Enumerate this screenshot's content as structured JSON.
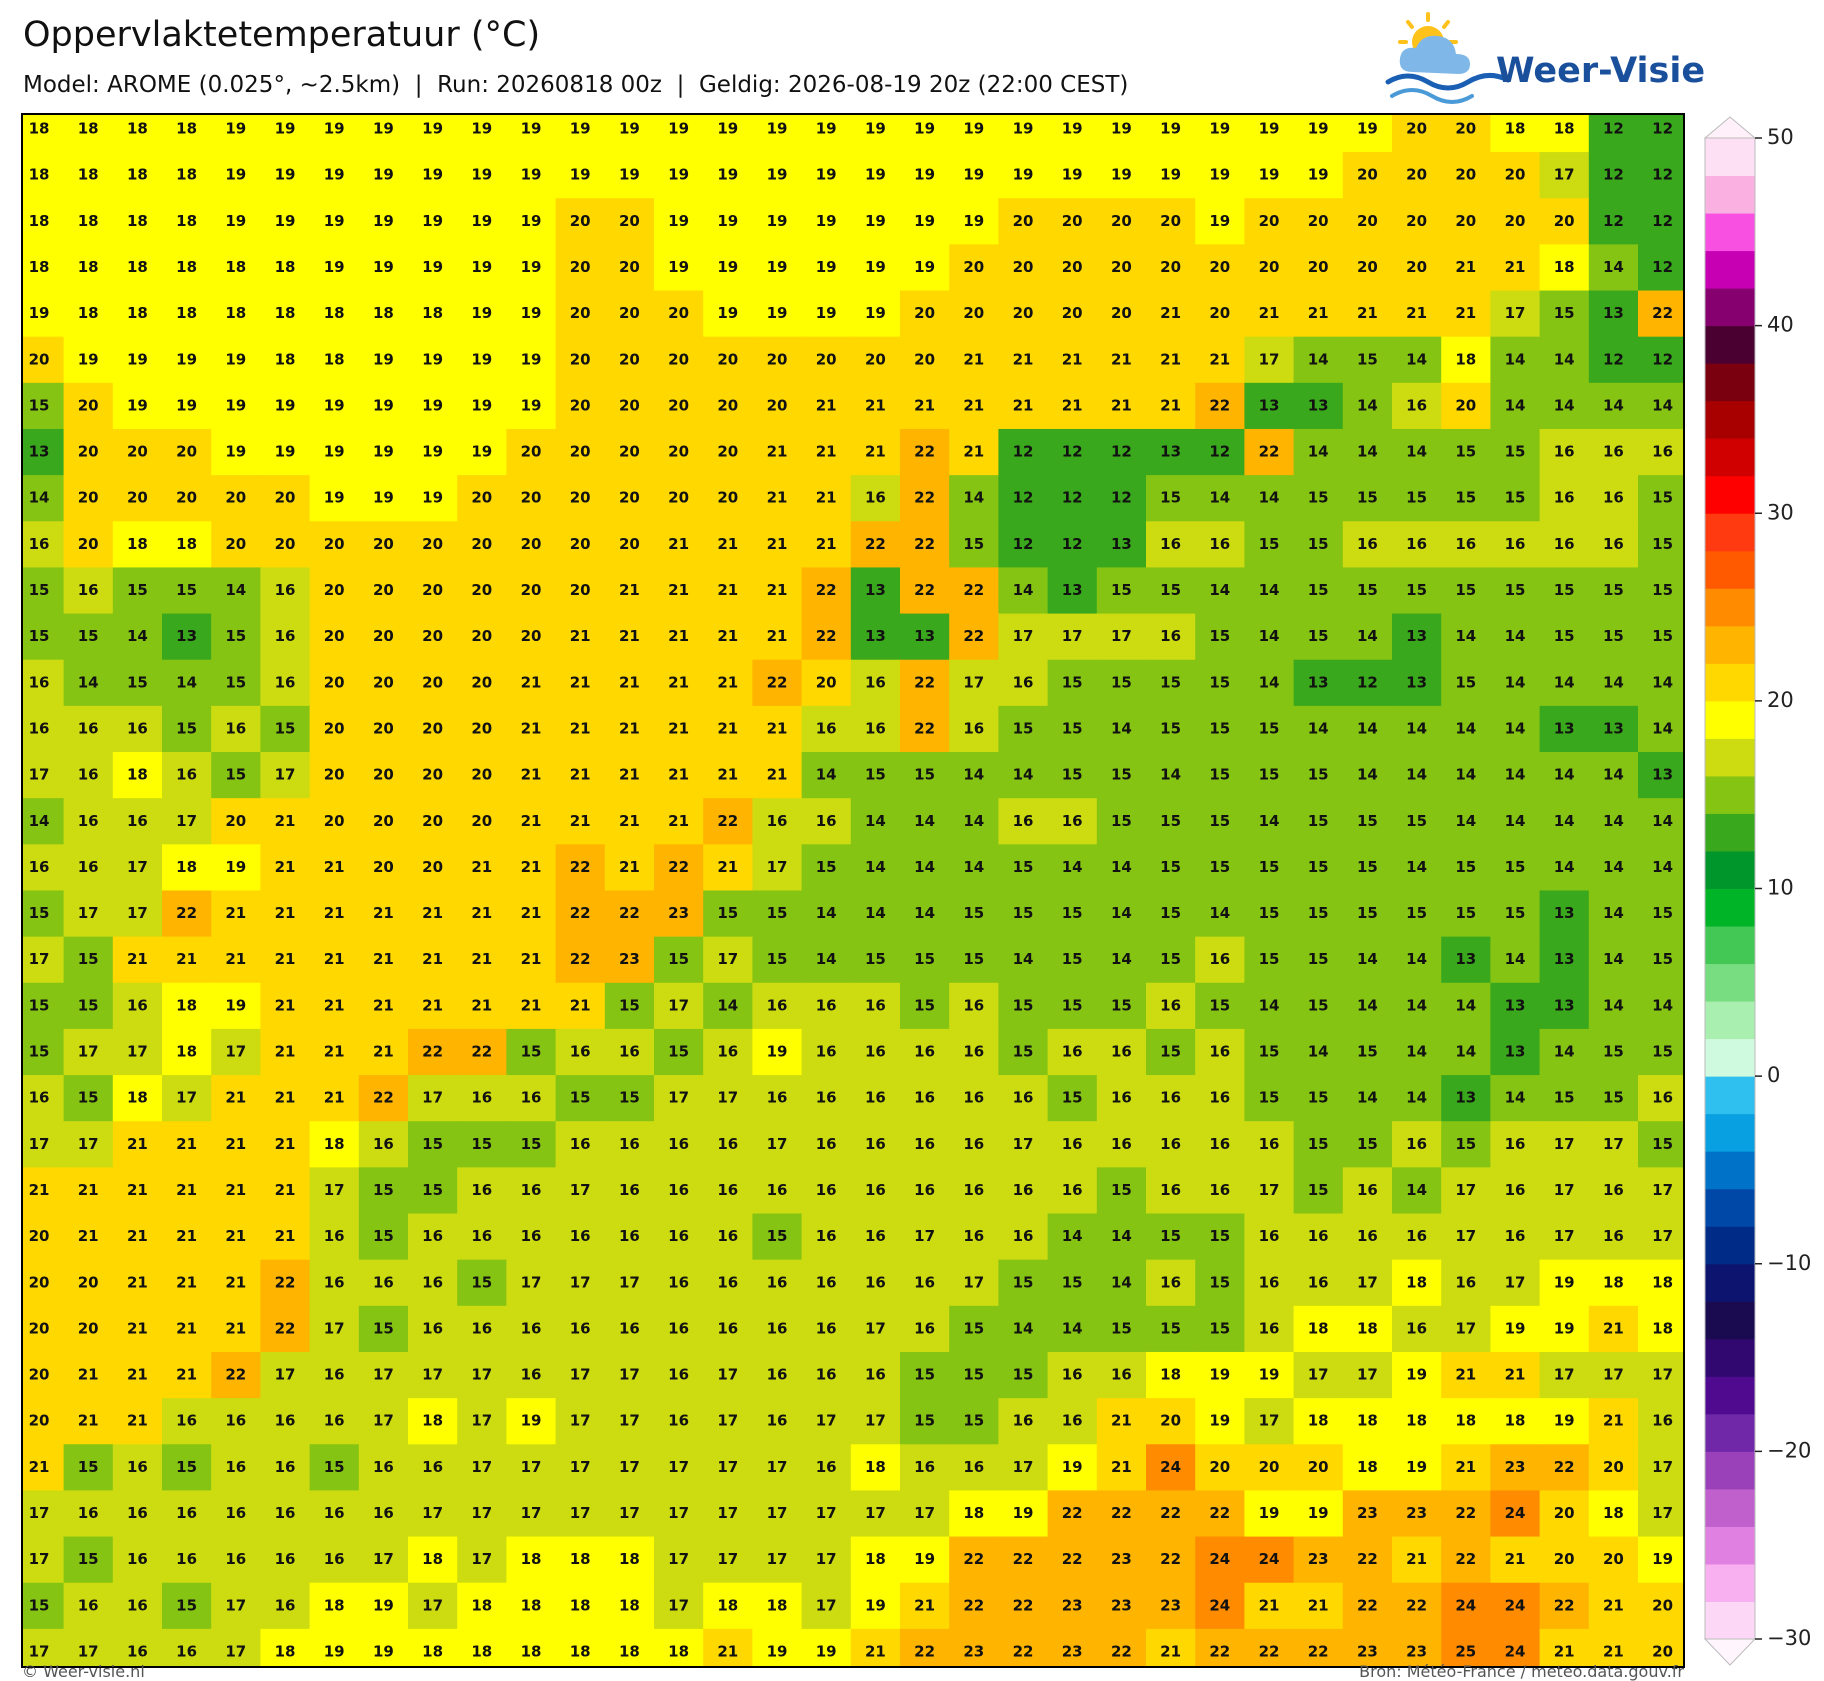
{
  "header": {
    "title": "Oppervlaktetemperatuur (°C)",
    "subtitle": "Model: AROME (0.025°, ~2.5km)  |  Run: 20260818 00z  |  Geldig: 2026-08-19 20z (22:00 CEST)"
  },
  "logo": "Weer-Visie",
  "map": {
    "rows": [
      [
        18,
        18,
        18,
        18,
        19,
        19,
        19,
        19,
        19,
        19,
        19,
        19,
        19,
        19,
        19,
        19,
        19,
        19,
        19,
        19,
        19,
        19,
        19,
        19,
        19,
        19,
        19,
        19,
        20,
        20,
        18,
        18,
        12,
        12
      ],
      [
        18,
        18,
        18,
        18,
        19,
        19,
        19,
        19,
        19,
        19,
        19,
        19,
        19,
        19,
        19,
        19,
        19,
        19,
        19,
        19,
        19,
        19,
        19,
        19,
        19,
        19,
        19,
        20,
        20,
        20,
        20,
        17,
        12,
        12
      ],
      [
        18,
        18,
        18,
        18,
        19,
        19,
        19,
        19,
        19,
        19,
        19,
        20,
        20,
        19,
        19,
        19,
        19,
        19,
        19,
        19,
        20,
        20,
        20,
        20,
        19,
        20,
        20,
        20,
        20,
        20,
        20,
        20,
        12,
        12
      ],
      [
        18,
        18,
        18,
        18,
        18,
        18,
        19,
        19,
        19,
        19,
        19,
        20,
        20,
        19,
        19,
        19,
        19,
        19,
        19,
        20,
        20,
        20,
        20,
        20,
        20,
        20,
        20,
        20,
        20,
        21,
        21,
        18,
        14,
        12
      ],
      [
        19,
        18,
        18,
        18,
        18,
        18,
        18,
        18,
        18,
        19,
        19,
        20,
        20,
        20,
        19,
        19,
        19,
        19,
        20,
        20,
        20,
        20,
        20,
        21,
        20,
        21,
        21,
        21,
        21,
        21,
        17,
        15,
        13,
        22
      ],
      [
        20,
        19,
        19,
        19,
        19,
        18,
        18,
        19,
        19,
        19,
        19,
        20,
        20,
        20,
        20,
        20,
        20,
        20,
        20,
        21,
        21,
        21,
        21,
        21,
        21,
        17,
        14,
        15,
        14,
        18,
        14,
        14,
        12,
        12
      ],
      [
        15,
        20,
        19,
        19,
        19,
        19,
        19,
        19,
        19,
        19,
        19,
        20,
        20,
        20,
        20,
        20,
        21,
        21,
        21,
        21,
        21,
        21,
        21,
        21,
        22,
        13,
        13,
        14,
        16,
        20,
        14,
        14,
        14,
        14
      ],
      [
        13,
        20,
        20,
        20,
        19,
        19,
        19,
        19,
        19,
        19,
        20,
        20,
        20,
        20,
        20,
        21,
        21,
        21,
        22,
        21,
        12,
        12,
        12,
        13,
        12,
        22,
        14,
        14,
        14,
        15,
        15,
        16,
        16,
        16
      ],
      [
        14,
        20,
        20,
        20,
        20,
        20,
        19,
        19,
        19,
        20,
        20,
        20,
        20,
        20,
        20,
        21,
        21,
        16,
        22,
        14,
        12,
        12,
        12,
        15,
        14,
        14,
        15,
        15,
        15,
        15,
        15,
        16,
        16,
        15
      ],
      [
        16,
        20,
        18,
        18,
        20,
        20,
        20,
        20,
        20,
        20,
        20,
        20,
        20,
        21,
        21,
        21,
        21,
        22,
        22,
        15,
        12,
        12,
        13,
        16,
        16,
        15,
        15,
        16,
        16,
        16,
        16,
        16,
        16,
        15
      ],
      [
        15,
        16,
        15,
        15,
        14,
        16,
        20,
        20,
        20,
        20,
        20,
        20,
        21,
        21,
        21,
        21,
        22,
        13,
        22,
        22,
        14,
        13,
        15,
        15,
        14,
        14,
        15,
        15,
        15,
        15,
        15,
        15,
        15,
        15
      ],
      [
        15,
        15,
        14,
        13,
        15,
        16,
        20,
        20,
        20,
        20,
        20,
        21,
        21,
        21,
        21,
        21,
        22,
        13,
        13,
        22,
        17,
        17,
        17,
        16,
        15,
        14,
        15,
        14,
        13,
        14,
        14,
        15,
        15,
        15
      ],
      [
        16,
        14,
        15,
        14,
        15,
        16,
        20,
        20,
        20,
        20,
        21,
        21,
        21,
        21,
        21,
        22,
        20,
        16,
        22,
        17,
        16,
        15,
        15,
        15,
        15,
        14,
        13,
        12,
        13,
        15,
        14,
        14,
        14,
        14
      ],
      [
        16,
        16,
        16,
        15,
        16,
        15,
        20,
        20,
        20,
        20,
        21,
        21,
        21,
        21,
        21,
        21,
        16,
        16,
        22,
        16,
        15,
        15,
        14,
        15,
        15,
        15,
        14,
        14,
        14,
        14,
        14,
        13,
        13,
        14
      ],
      [
        17,
        16,
        18,
        16,
        15,
        17,
        20,
        20,
        20,
        20,
        21,
        21,
        21,
        21,
        21,
        21,
        14,
        15,
        15,
        14,
        14,
        15,
        15,
        14,
        15,
        15,
        15,
        14,
        14,
        14,
        14,
        14,
        14,
        13
      ],
      [
        14,
        16,
        16,
        17,
        20,
        21,
        20,
        20,
        20,
        20,
        21,
        21,
        21,
        21,
        22,
        16,
        16,
        14,
        14,
        14,
        16,
        16,
        15,
        15,
        15,
        14,
        15,
        15,
        15,
        14,
        14,
        14,
        14,
        14
      ],
      [
        16,
        16,
        17,
        18,
        19,
        21,
        21,
        20,
        20,
        21,
        21,
        22,
        21,
        22,
        21,
        17,
        15,
        14,
        14,
        14,
        15,
        14,
        14,
        15,
        15,
        15,
        15,
        15,
        14,
        15,
        15,
        14,
        14,
        14
      ],
      [
        15,
        17,
        17,
        22,
        21,
        21,
        21,
        21,
        21,
        21,
        21,
        22,
        22,
        23,
        15,
        15,
        14,
        14,
        14,
        15,
        15,
        15,
        14,
        15,
        14,
        15,
        15,
        15,
        15,
        15,
        15,
        13,
        14,
        15
      ],
      [
        17,
        15,
        21,
        21,
        21,
        21,
        21,
        21,
        21,
        21,
        21,
        22,
        23,
        15,
        17,
        15,
        14,
        15,
        15,
        15,
        14,
        15,
        14,
        15,
        16,
        15,
        15,
        14,
        14,
        13,
        14,
        13,
        14,
        15
      ],
      [
        15,
        15,
        16,
        18,
        19,
        21,
        21,
        21,
        21,
        21,
        21,
        21,
        15,
        17,
        14,
        16,
        16,
        16,
        15,
        16,
        15,
        15,
        15,
        16,
        15,
        14,
        15,
        14,
        14,
        14,
        13,
        13,
        14,
        14
      ],
      [
        15,
        17,
        17,
        18,
        17,
        21,
        21,
        21,
        22,
        22,
        15,
        16,
        16,
        15,
        16,
        19,
        16,
        16,
        16,
        16,
        15,
        16,
        16,
        15,
        16,
        15,
        14,
        15,
        14,
        14,
        13,
        14,
        15,
        15
      ],
      [
        16,
        15,
        18,
        17,
        21,
        21,
        21,
        22,
        17,
        16,
        16,
        15,
        15,
        17,
        17,
        16,
        16,
        16,
        16,
        16,
        16,
        15,
        16,
        16,
        16,
        15,
        15,
        14,
        14,
        13,
        14,
        15,
        15,
        16
      ],
      [
        17,
        17,
        21,
        21,
        21,
        21,
        18,
        16,
        15,
        15,
        15,
        16,
        16,
        16,
        16,
        17,
        16,
        16,
        16,
        16,
        17,
        16,
        16,
        16,
        16,
        16,
        15,
        15,
        16,
        15,
        16,
        17,
        17,
        15
      ],
      [
        21,
        21,
        21,
        21,
        21,
        21,
        17,
        15,
        15,
        16,
        16,
        17,
        16,
        16,
        16,
        16,
        16,
        16,
        16,
        16,
        16,
        16,
        15,
        16,
        16,
        17,
        15,
        16,
        14,
        17,
        16,
        17,
        16,
        17
      ],
      [
        20,
        21,
        21,
        21,
        21,
        21,
        16,
        15,
        16,
        16,
        16,
        16,
        16,
        16,
        16,
        15,
        16,
        16,
        17,
        16,
        16,
        14,
        14,
        15,
        15,
        16,
        16,
        16,
        16,
        17,
        16,
        17,
        16,
        17
      ],
      [
        20,
        20,
        21,
        21,
        21,
        22,
        16,
        16,
        16,
        15,
        17,
        17,
        17,
        16,
        16,
        16,
        16,
        16,
        16,
        17,
        15,
        15,
        14,
        16,
        15,
        16,
        16,
        17,
        18,
        16,
        17,
        19,
        18,
        18
      ],
      [
        20,
        20,
        21,
        21,
        21,
        22,
        17,
        15,
        16,
        16,
        16,
        16,
        16,
        16,
        16,
        16,
        16,
        17,
        16,
        15,
        14,
        14,
        15,
        15,
        15,
        16,
        18,
        18,
        16,
        17,
        19,
        19,
        21,
        18
      ],
      [
        20,
        21,
        21,
        21,
        22,
        17,
        16,
        17,
        17,
        17,
        16,
        17,
        17,
        16,
        17,
        16,
        16,
        16,
        15,
        15,
        15,
        16,
        16,
        18,
        19,
        19,
        17,
        17,
        19,
        21,
        21,
        17,
        17,
        17
      ],
      [
        20,
        21,
        21,
        16,
        16,
        16,
        16,
        17,
        18,
        17,
        19,
        17,
        17,
        16,
        17,
        16,
        17,
        17,
        15,
        15,
        16,
        16,
        21,
        20,
        19,
        17,
        18,
        18,
        18,
        18,
        18,
        19,
        21,
        16
      ],
      [
        21,
        15,
        16,
        15,
        16,
        16,
        15,
        16,
        16,
        17,
        17,
        17,
        17,
        17,
        17,
        17,
        16,
        18,
        16,
        16,
        17,
        19,
        21,
        24,
        20,
        20,
        20,
        18,
        19,
        21,
        23,
        22,
        20,
        17
      ],
      [
        17,
        16,
        16,
        16,
        16,
        16,
        16,
        16,
        17,
        17,
        17,
        17,
        17,
        17,
        17,
        17,
        17,
        17,
        17,
        18,
        19,
        22,
        22,
        22,
        22,
        19,
        19,
        23,
        23,
        22,
        24,
        20,
        18,
        17
      ],
      [
        17,
        15,
        16,
        16,
        16,
        16,
        16,
        17,
        18,
        17,
        18,
        18,
        18,
        17,
        17,
        17,
        17,
        18,
        19,
        22,
        22,
        22,
        23,
        22,
        24,
        24,
        23,
        22,
        21,
        22,
        21,
        20,
        20,
        19
      ],
      [
        15,
        16,
        16,
        15,
        17,
        16,
        18,
        19,
        17,
        18,
        18,
        18,
        18,
        17,
        18,
        18,
        17,
        19,
        21,
        22,
        22,
        23,
        23,
        23,
        24,
        21,
        21,
        22,
        22,
        24,
        24,
        22,
        21,
        20
      ],
      [
        17,
        17,
        16,
        16,
        17,
        18,
        19,
        19,
        18,
        18,
        18,
        18,
        18,
        18,
        21,
        19,
        19,
        21,
        22,
        23,
        22,
        23,
        22,
        21,
        22,
        22,
        22,
        23,
        23,
        25,
        24,
        21,
        21,
        20
      ]
    ]
  },
  "colorbar": {
    "lim": [
      -30,
      50
    ],
    "ticks": [
      {
        "value": -30,
        "label": "−30"
      },
      {
        "value": -20,
        "label": "−20"
      },
      {
        "value": -10,
        "label": "−10"
      },
      0,
      10,
      20,
      30,
      40,
      50
    ],
    "colors": [
      "#fdd8f6",
      "#f8b0f0",
      "#e080e0",
      "#c060cc",
      "#9a40b8",
      "#7028a8",
      "#500a90",
      "#300870",
      "#1a0a50",
      "#0c1470",
      "#002c88",
      "#0048a8",
      "#0072c8",
      "#08a0e0",
      "#30c0f0",
      "#d0fae0",
      "#a8efb0",
      "#78dc80",
      "#44c855",
      "#00b428",
      "#00962c",
      "#3aa81c",
      "#86c414",
      "#cddc10",
      "#ffff00",
      "#ffd800",
      "#ffb400",
      "#ff8c00",
      "#ff5a00",
      "#ff3a10",
      "#ff0000",
      "#d00000",
      "#a80000",
      "#7a0010",
      "#4a0030",
      "#860070",
      "#c800b4",
      "#f850e0",
      "#fbb0e2",
      "#fde0f4"
    ]
  },
  "footer": {
    "left": "© Weer-visie.nl",
    "right": "Bron: Météo-France / meteo.data.gouv.fr"
  }
}
